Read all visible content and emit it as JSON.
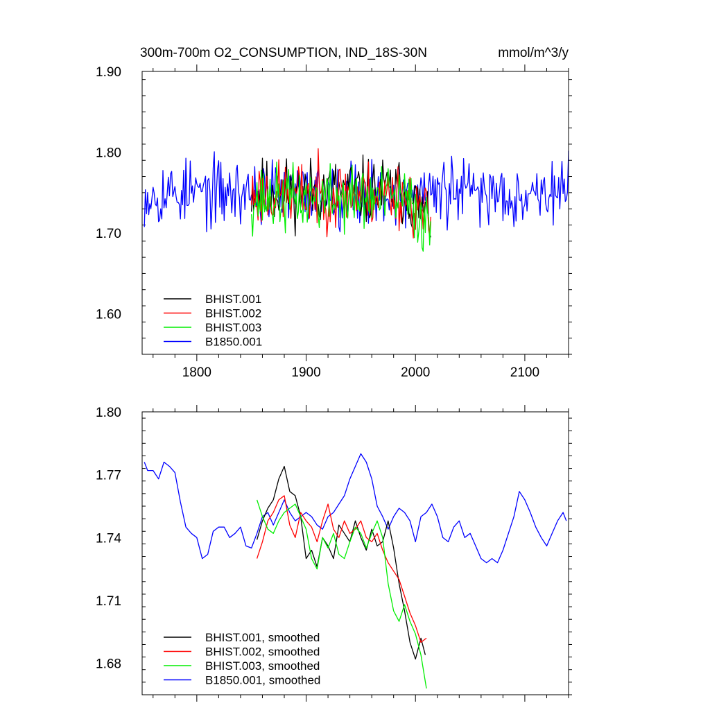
{
  "chart_data": [
    {
      "type": "line",
      "title": "300m-700m O2_CONSUMPTION, IND_18S-30N",
      "units": "mmol/m^3/y",
      "xlim": [
        1750,
        2140
      ],
      "ylim": [
        1.55,
        1.9
      ],
      "xticks": [
        1800,
        1900,
        2000,
        2100
      ],
      "yticks": [
        1.6,
        1.7,
        1.8,
        1.9
      ],
      "ytick_labels": [
        "1.60",
        "1.70",
        "1.80",
        "1.90"
      ],
      "legend_position": "bottom-left",
      "series": [
        {
          "name": "BHIST.001",
          "color": "#000000",
          "x_start": 1850,
          "x_end": 2014,
          "step": 1,
          "base": 1.752,
          "trend_after": 1990,
          "trend": -0.0015,
          "amp": 0.045,
          "seed": 11
        },
        {
          "name": "BHIST.002",
          "color": "#ff0000",
          "x_start": 1850,
          "x_end": 2014,
          "step": 1,
          "base": 1.748,
          "trend_after": 1990,
          "trend": -0.0015,
          "amp": 0.045,
          "seed": 23
        },
        {
          "name": "BHIST.003",
          "color": "#00ee00",
          "x_start": 1850,
          "x_end": 2014,
          "step": 1,
          "base": 1.742,
          "trend_after": 1990,
          "trend": -0.0015,
          "amp": 0.045,
          "seed": 37
        },
        {
          "name": "B1850.001",
          "color": "#0000ff",
          "x_start": 1752,
          "x_end": 2140,
          "step": 1,
          "base": 1.75,
          "trend_after": 2200,
          "trend": 0,
          "amp": 0.045,
          "seed": 53
        }
      ]
    },
    {
      "type": "line",
      "title": "",
      "xlim": [
        1750,
        2140
      ],
      "ylim": [
        1.665,
        1.8
      ],
      "xticks": [
        1800,
        1900,
        2000,
        2100
      ],
      "yticks": [
        1.68,
        1.71,
        1.74,
        1.77,
        1.8
      ],
      "ytick_labels": [
        "1.68",
        "1.71",
        "1.74",
        "1.77",
        "1.80"
      ],
      "legend_position": "bottom-left",
      "series": [
        {
          "name": "BHIST.001, smoothed",
          "color": "#000000",
          "points": [
            [
              1855,
              1.739
            ],
            [
              1860,
              1.748
            ],
            [
              1865,
              1.754
            ],
            [
              1870,
              1.758
            ],
            [
              1875,
              1.768
            ],
            [
              1880,
              1.774
            ],
            [
              1885,
              1.762
            ],
            [
              1890,
              1.76
            ],
            [
              1895,
              1.75
            ],
            [
              1900,
              1.73
            ],
            [
              1905,
              1.734
            ],
            [
              1910,
              1.726
            ],
            [
              1915,
              1.74
            ],
            [
              1920,
              1.736
            ],
            [
              1925,
              1.73
            ],
            [
              1930,
              1.746
            ],
            [
              1935,
              1.742
            ],
            [
              1940,
              1.738
            ],
            [
              1945,
              1.748
            ],
            [
              1950,
              1.74
            ],
            [
              1955,
              1.734
            ],
            [
              1960,
              1.744
            ],
            [
              1965,
              1.736
            ],
            [
              1970,
              1.738
            ],
            [
              1975,
              1.748
            ],
            [
              1980,
              1.735
            ],
            [
              1985,
              1.718
            ],
            [
              1990,
              1.705
            ],
            [
              1995,
              1.69
            ],
            [
              2000,
              1.682
            ],
            [
              2005,
              1.692
            ],
            [
              2009,
              1.684
            ]
          ]
        },
        {
          "name": "BHIST.002, smoothed",
          "color": "#ff0000",
          "points": [
            [
              1855,
              1.73
            ],
            [
              1860,
              1.738
            ],
            [
              1865,
              1.748
            ],
            [
              1870,
              1.752
            ],
            [
              1875,
              1.758
            ],
            [
              1880,
              1.76
            ],
            [
              1885,
              1.746
            ],
            [
              1890,
              1.74
            ],
            [
              1895,
              1.752
            ],
            [
              1900,
              1.748
            ],
            [
              1905,
              1.745
            ],
            [
              1910,
              1.738
            ],
            [
              1915,
              1.748
            ],
            [
              1920,
              1.756
            ],
            [
              1925,
              1.744
            ],
            [
              1930,
              1.74
            ],
            [
              1935,
              1.748
            ],
            [
              1940,
              1.742
            ],
            [
              1945,
              1.744
            ],
            [
              1950,
              1.748
            ],
            [
              1955,
              1.74
            ],
            [
              1960,
              1.738
            ],
            [
              1965,
              1.742
            ],
            [
              1970,
              1.734
            ],
            [
              1975,
              1.728
            ],
            [
              1980,
              1.724
            ],
            [
              1985,
              1.72
            ],
            [
              1990,
              1.712
            ],
            [
              1995,
              1.704
            ],
            [
              2000,
              1.698
            ],
            [
              2005,
              1.69
            ],
            [
              2010,
              1.692
            ]
          ]
        },
        {
          "name": "BHIST.003, smoothed",
          "color": "#00ee00",
          "points": [
            [
              1855,
              1.758
            ],
            [
              1860,
              1.75
            ],
            [
              1865,
              1.744
            ],
            [
              1870,
              1.742
            ],
            [
              1875,
              1.748
            ],
            [
              1880,
              1.752
            ],
            [
              1885,
              1.754
            ],
            [
              1890,
              1.756
            ],
            [
              1895,
              1.75
            ],
            [
              1900,
              1.744
            ],
            [
              1905,
              1.73
            ],
            [
              1910,
              1.725
            ],
            [
              1915,
              1.74
            ],
            [
              1920,
              1.735
            ],
            [
              1925,
              1.742
            ],
            [
              1930,
              1.732
            ],
            [
              1935,
              1.73
            ],
            [
              1940,
              1.738
            ],
            [
              1945,
              1.745
            ],
            [
              1950,
              1.742
            ],
            [
              1955,
              1.735
            ],
            [
              1960,
              1.742
            ],
            [
              1965,
              1.748
            ],
            [
              1970,
              1.74
            ],
            [
              1975,
              1.718
            ],
            [
              1980,
              1.705
            ],
            [
              1985,
              1.7
            ],
            [
              1990,
              1.708
            ],
            [
              1995,
              1.7
            ],
            [
              2000,
              1.694
            ],
            [
              2005,
              1.684
            ],
            [
              2010,
              1.668
            ]
          ]
        },
        {
          "name": "B1850.001, smoothed",
          "color": "#0000ff",
          "points": [
            [
              1752,
              1.776
            ],
            [
              1755,
              1.772
            ],
            [
              1760,
              1.772
            ],
            [
              1765,
              1.768
            ],
            [
              1770,
              1.776
            ],
            [
              1775,
              1.774
            ],
            [
              1780,
              1.771
            ],
            [
              1785,
              1.757
            ],
            [
              1790,
              1.745
            ],
            [
              1795,
              1.742
            ],
            [
              1800,
              1.74
            ],
            [
              1805,
              1.73
            ],
            [
              1810,
              1.732
            ],
            [
              1815,
              1.743
            ],
            [
              1820,
              1.745
            ],
            [
              1825,
              1.745
            ],
            [
              1830,
              1.74
            ],
            [
              1835,
              1.742
            ],
            [
              1840,
              1.745
            ],
            [
              1845,
              1.736
            ],
            [
              1850,
              1.735
            ],
            [
              1855,
              1.742
            ],
            [
              1860,
              1.75
            ],
            [
              1865,
              1.752
            ],
            [
              1870,
              1.746
            ],
            [
              1875,
              1.752
            ],
            [
              1880,
              1.758
            ],
            [
              1885,
              1.752
            ],
            [
              1890,
              1.748
            ],
            [
              1895,
              1.75
            ],
            [
              1900,
              1.752
            ],
            [
              1905,
              1.75
            ],
            [
              1910,
              1.746
            ],
            [
              1915,
              1.744
            ],
            [
              1920,
              1.75
            ],
            [
              1925,
              1.752
            ],
            [
              1930,
              1.756
            ],
            [
              1935,
              1.76
            ],
            [
              1940,
              1.768
            ],
            [
              1945,
              1.774
            ],
            [
              1950,
              1.78
            ],
            [
              1955,
              1.776
            ],
            [
              1960,
              1.768
            ],
            [
              1965,
              1.755
            ],
            [
              1970,
              1.75
            ],
            [
              1975,
              1.744
            ],
            [
              1980,
              1.75
            ],
            [
              1985,
              1.754
            ],
            [
              1990,
              1.752
            ],
            [
              1995,
              1.748
            ],
            [
              2000,
              1.738
            ],
            [
              2005,
              1.75
            ],
            [
              2010,
              1.752
            ],
            [
              2015,
              1.756
            ],
            [
              2020,
              1.75
            ],
            [
              2025,
              1.74
            ],
            [
              2030,
              1.738
            ],
            [
              2035,
              1.745
            ],
            [
              2040,
              1.748
            ],
            [
              2045,
              1.74
            ],
            [
              2050,
              1.742
            ],
            [
              2055,
              1.736
            ],
            [
              2060,
              1.73
            ],
            [
              2065,
              1.728
            ],
            [
              2070,
              1.73
            ],
            [
              2075,
              1.728
            ],
            [
              2080,
              1.734
            ],
            [
              2085,
              1.742
            ],
            [
              2090,
              1.75
            ],
            [
              2095,
              1.762
            ],
            [
              2100,
              1.758
            ],
            [
              2105,
              1.752
            ],
            [
              2110,
              1.745
            ],
            [
              2115,
              1.74
            ],
            [
              2120,
              1.736
            ],
            [
              2125,
              1.742
            ],
            [
              2130,
              1.748
            ],
            [
              2135,
              1.752
            ],
            [
              2138,
              1.748
            ]
          ]
        }
      ]
    }
  ]
}
